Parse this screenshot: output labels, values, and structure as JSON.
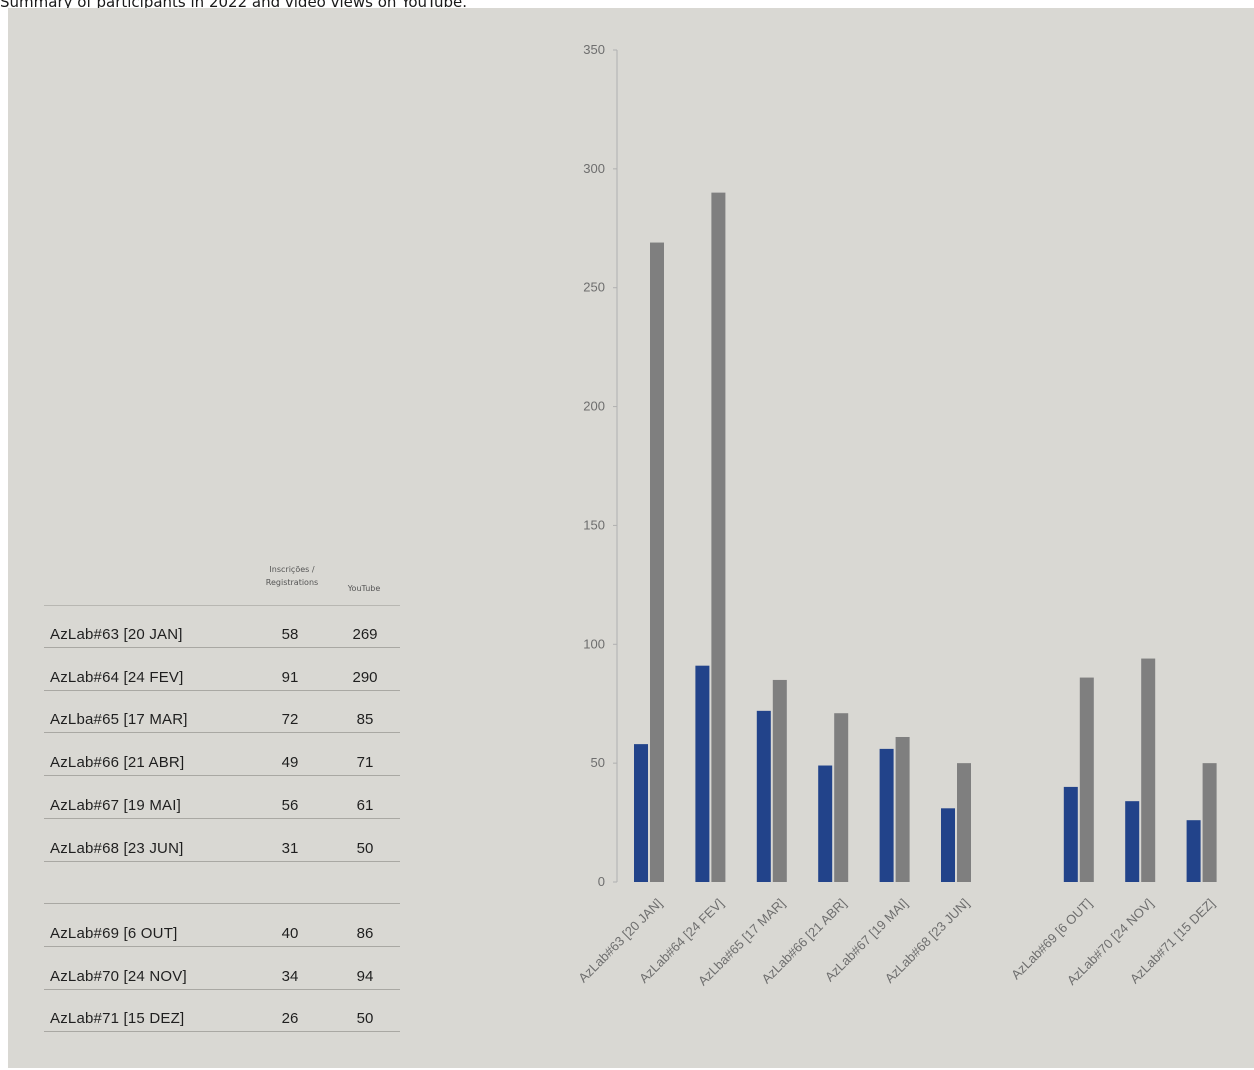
{
  "caption": "Summary of participants in 2022 and video views on YouTube.",
  "table": {
    "col_registrations": "Inscrições / Registrations",
    "col_youtube": "YouTube",
    "rows": [
      {
        "name": "AzLab#63 [20 JAN]",
        "registrations": "58",
        "youtube": "269"
      },
      {
        "name": "AzLab#64 [24 FEV]",
        "registrations": "91",
        "youtube": "290"
      },
      {
        "name": "AzLba#65 [17 MAR]",
        "registrations": "72",
        "youtube": "85"
      },
      {
        "name": "AzLab#66 [21 ABR]",
        "registrations": "49",
        "youtube": "71"
      },
      {
        "name": "AzLab#67 [19 MAI]",
        "registrations": "56",
        "youtube": "61"
      },
      {
        "name": "AzLab#68 [23 JUN]",
        "registrations": "31",
        "youtube": "50"
      },
      {
        "name": "",
        "registrations": "",
        "youtube": ""
      },
      {
        "name": "AzLab#69 [6 OUT]",
        "registrations": "40",
        "youtube": "86"
      },
      {
        "name": "AzLab#70 [24 NOV]",
        "registrations": "34",
        "youtube": "94"
      },
      {
        "name": "AzLab#71 [15 DEZ]",
        "registrations": "26",
        "youtube": "50"
      }
    ]
  },
  "chart_data": {
    "type": "bar",
    "categories": [
      "AzLab#63 [20 JAN]",
      "AzLab#64 [24 FEV]",
      "AzLba#65 [17 MAR]",
      "AzLab#66 [21 ABR]",
      "AzLab#67 [19 MAI]",
      "AzLab#68 [23 JUN]",
      "",
      "AzLab#69 [6 OUT]",
      "AzLab#70 [24 NOV]",
      "AzLab#71 [15 DEZ]"
    ],
    "series": [
      {
        "values": [
          58,
          91,
          72,
          49,
          56,
          31,
          null,
          40,
          34,
          26
        ],
        "color": "#22438a"
      },
      {
        "values": [
          269,
          290,
          85,
          71,
          61,
          50,
          null,
          86,
          94,
          50
        ],
        "color": "#7f7f7f"
      }
    ],
    "yticks": [
      0,
      50,
      100,
      150,
      200,
      250,
      300,
      350
    ],
    "ylim": [
      0,
      350
    ],
    "title": "",
    "xlabel": "",
    "ylabel": "",
    "grid": false,
    "legend": "none"
  }
}
